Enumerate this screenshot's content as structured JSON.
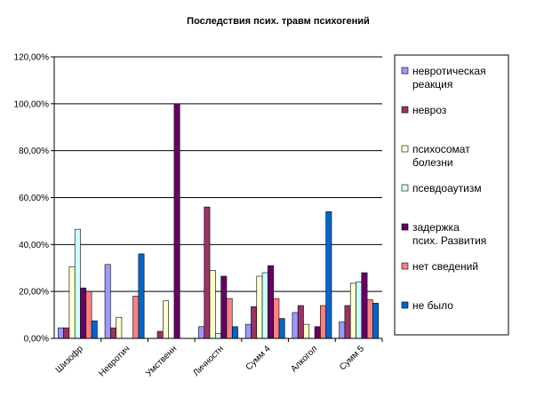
{
  "chart_data": {
    "type": "bar",
    "title": "Последствия псих. травм психогений",
    "xlabel": "",
    "ylabel": "",
    "ylim": [
      0,
      1.2
    ],
    "yticks": [
      "0,00%",
      "20,00%",
      "40,00%",
      "60,00%",
      "80,00%",
      "100,00%",
      "120,00%"
    ],
    "grid": true,
    "legend_position": "right",
    "categories": [
      "Шизофр",
      "Невротич",
      "Умственн",
      "Личностн",
      "Сумм 4",
      "Алкогол",
      "Сумм 5"
    ],
    "series": [
      {
        "name": "невротическая реакция",
        "color": "#9999ff",
        "values": [
          0.045,
          0.315,
          0.0,
          0.05,
          0.06,
          0.11,
          0.07
        ]
      },
      {
        "name": "невроз",
        "color": "#993366",
        "values": [
          0.045,
          0.045,
          0.03,
          0.56,
          0.135,
          0.14,
          0.14
        ]
      },
      {
        "name": "психосомат болезни",
        "color": "#ffffcc",
        "values": [
          0.305,
          0.09,
          0.16,
          0.29,
          0.265,
          0.06,
          0.235
        ]
      },
      {
        "name": "псевдоаутизм",
        "color": "#ccffff",
        "values": [
          0.465,
          0.0,
          0.0,
          0.02,
          0.28,
          0.0,
          0.24
        ]
      },
      {
        "name": "задержка псих. Развития",
        "color": "#660066",
        "values": [
          0.215,
          0.0,
          1.0,
          0.265,
          0.31,
          0.05,
          0.28
        ]
      },
      {
        "name": "нет сведений",
        "color": "#ff8080",
        "values": [
          0.2,
          0.18,
          0.0,
          0.17,
          0.17,
          0.14,
          0.165
        ]
      },
      {
        "name": "не было",
        "color": "#0066cc",
        "values": [
          0.075,
          0.36,
          0.0,
          0.05,
          0.085,
          0.54,
          0.15
        ]
      }
    ]
  }
}
